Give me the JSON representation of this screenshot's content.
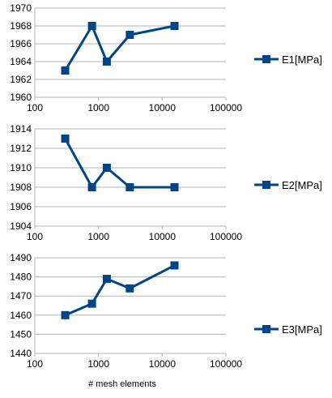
{
  "chart_data": [
    {
      "type": "line",
      "x_scale": "log",
      "xlim": [
        100,
        100000
      ],
      "x_ticks": [
        100,
        1000,
        10000,
        100000
      ],
      "ylim": [
        1960,
        1970
      ],
      "y_ticks": [
        1960,
        1962,
        1964,
        1966,
        1968,
        1970
      ],
      "grid": "horizontal",
      "legend": "right",
      "xlabel": "",
      "series": [
        {
          "name": "E1[MPa]",
          "color": "#004586",
          "x": [
            300,
            790,
            1350,
            3100,
            15600
          ],
          "values": [
            1963,
            1968,
            1964,
            1967,
            1968
          ]
        }
      ]
    },
    {
      "type": "line",
      "x_scale": "log",
      "xlim": [
        100,
        100000
      ],
      "x_ticks": [
        100,
        1000,
        10000,
        100000
      ],
      "ylim": [
        1904,
        1914
      ],
      "y_ticks": [
        1904,
        1906,
        1908,
        1910,
        1912,
        1914
      ],
      "grid": "horizontal",
      "legend": "right",
      "xlabel": "",
      "series": [
        {
          "name": "E2[MPa]",
          "color": "#004586",
          "x": [
            300,
            790,
            1350,
            3100,
            15600
          ],
          "values": [
            1913,
            1908,
            1910,
            1908,
            1908
          ]
        }
      ]
    },
    {
      "type": "line",
      "x_scale": "log",
      "xlim": [
        100,
        100000
      ],
      "x_ticks": [
        100,
        1000,
        10000,
        100000
      ],
      "ylim": [
        1440,
        1490
      ],
      "y_ticks": [
        1440,
        1450,
        1460,
        1470,
        1480,
        1490
      ],
      "grid": "horizontal",
      "legend": "right",
      "xlabel": "# mesh elements",
      "series": [
        {
          "name": "E3[MPa]",
          "color": "#004586",
          "x": [
            300,
            790,
            1350,
            3100,
            15600
          ],
          "values": [
            1460,
            1466,
            1479,
            1474,
            1486
          ]
        }
      ]
    }
  ]
}
